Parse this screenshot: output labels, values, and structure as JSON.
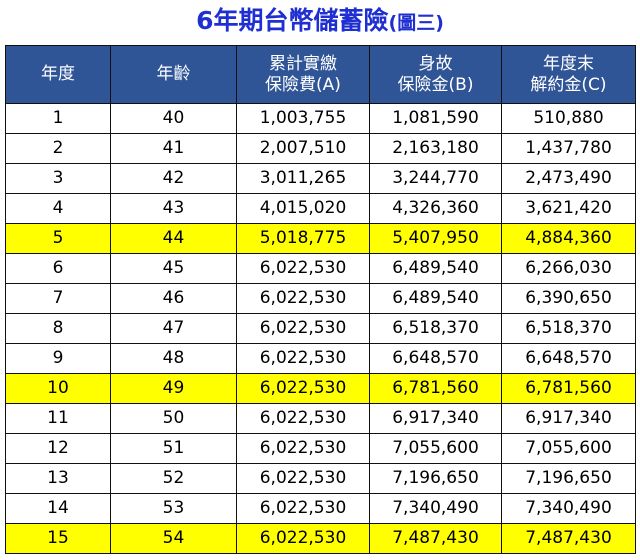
{
  "title": {
    "main": "6年期台幣儲蓄險",
    "sub": "(圖三)"
  },
  "colors": {
    "title": "#1f2fd1",
    "header_bg": "#2f5597",
    "header_text": "#ffffff",
    "highlight": "#ffff00"
  },
  "table": {
    "headers": [
      {
        "line1": "年度",
        "line2": ""
      },
      {
        "line1": "年齡",
        "line2": ""
      },
      {
        "line1": "累計實繳",
        "line2": "保險費(A)"
      },
      {
        "line1": "身故",
        "line2": "保險金(B)"
      },
      {
        "line1": "年度末",
        "line2": "解約金(C)"
      }
    ],
    "highlighted_years": [
      "5",
      "10",
      "15"
    ],
    "rows": [
      [
        "1",
        "40",
        "1,003,755",
        "1,081,590",
        "510,880"
      ],
      [
        "2",
        "41",
        "2,007,510",
        "2,163,180",
        "1,437,780"
      ],
      [
        "3",
        "42",
        "3,011,265",
        "3,244,770",
        "2,473,490"
      ],
      [
        "4",
        "43",
        "4,015,020",
        "4,326,360",
        "3,621,420"
      ],
      [
        "5",
        "44",
        "5,018,775",
        "5,407,950",
        "4,884,360"
      ],
      [
        "6",
        "45",
        "6,022,530",
        "6,489,540",
        "6,266,030"
      ],
      [
        "7",
        "46",
        "6,022,530",
        "6,489,540",
        "6,390,650"
      ],
      [
        "8",
        "47",
        "6,022,530",
        "6,518,370",
        "6,518,370"
      ],
      [
        "9",
        "48",
        "6,022,530",
        "6,648,570",
        "6,648,570"
      ],
      [
        "10",
        "49",
        "6,022,530",
        "6,781,560",
        "6,781,560"
      ],
      [
        "11",
        "50",
        "6,022,530",
        "6,917,340",
        "6,917,340"
      ],
      [
        "12",
        "51",
        "6,022,530",
        "7,055,600",
        "7,055,600"
      ],
      [
        "13",
        "52",
        "6,022,530",
        "7,196,650",
        "7,196,650"
      ],
      [
        "14",
        "53",
        "6,022,530",
        "7,340,490",
        "7,340,490"
      ],
      [
        "15",
        "54",
        "6,022,530",
        "7,487,430",
        "7,487,430"
      ]
    ]
  }
}
